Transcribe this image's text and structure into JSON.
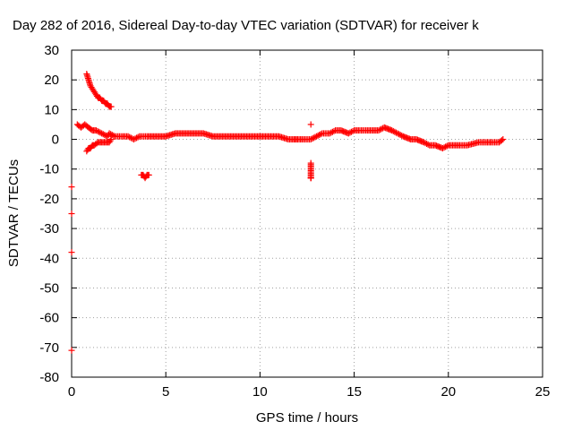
{
  "chart_data": {
    "type": "scatter",
    "title": "Day 282 of 2016, Sidereal Day-to-day VTEC variation (SDTVAR) for receiver k",
    "xlabel": "GPS time / hours",
    "ylabel": "SDTVAR / TECUs",
    "xlim": [
      0,
      25
    ],
    "ylim": [
      -80,
      30
    ],
    "xticks": [
      "0",
      "5",
      "10",
      "15",
      "20",
      "25"
    ],
    "yticks": [
      "30",
      "20",
      "10",
      "0",
      "-10",
      "-20",
      "-30",
      "-40",
      "-50",
      "-60",
      "-70",
      "-80"
    ],
    "grid": true,
    "marker": "+",
    "color": "#ff0000",
    "series": [
      {
        "x": [
          0.0,
          0.0,
          0.0,
          0.0,
          0.3,
          0.5,
          0.7,
          0.9,
          1.1,
          1.3,
          1.6,
          1.9,
          2.0,
          2.3,
          2.7,
          3.0,
          3.3,
          3.6,
          4.0,
          4.5,
          5.0,
          5.5,
          6.0,
          6.5,
          7.0,
          7.5,
          8.0,
          8.5,
          9.0,
          9.5,
          10.0,
          10.5,
          11.0,
          11.5,
          11.8,
          12.0,
          12.3,
          12.7,
          13.0,
          13.3,
          13.7,
          14.0,
          14.3,
          14.7,
          15.0,
          15.3,
          15.7,
          16.3,
          16.6,
          17.0,
          17.3,
          17.6,
          18.0,
          18.3,
          18.7,
          19.0,
          19.3,
          19.7,
          20.0,
          20.3,
          20.6,
          21.0,
          21.6,
          22.0,
          22.3,
          22.7,
          22.9
        ],
        "y": [
          -16,
          -25,
          -38,
          -71,
          5,
          4,
          5,
          4,
          3,
          3,
          2,
          1,
          2,
          1,
          1,
          1,
          0,
          1,
          1,
          1,
          1,
          2,
          2,
          2,
          2,
          1,
          1,
          1,
          1,
          1,
          1,
          1,
          1,
          0,
          0,
          0,
          0,
          0,
          1,
          2,
          2,
          3,
          3,
          2,
          3,
          3,
          3,
          3,
          4,
          3,
          2,
          1,
          0,
          0,
          -1,
          -2,
          -2,
          -3,
          -2,
          -2,
          -2,
          -2,
          -1,
          -1,
          -1,
          -1,
          0
        ]
      },
      {
        "x": [
          0.8,
          0.9,
          1.0,
          1.1,
          1.2,
          1.3,
          1.4,
          1.5,
          1.6,
          1.7,
          1.8,
          1.9,
          2.0,
          2.1
        ],
        "y": [
          22,
          20,
          18,
          17,
          16,
          15,
          14,
          14,
          13,
          13,
          12,
          12,
          11,
          11
        ]
      },
      {
        "x": [
          0.8,
          0.9,
          1.0,
          1.1,
          1.2,
          1.4,
          1.6,
          1.8,
          2.0,
          2.1
        ],
        "y": [
          -4,
          -3,
          -3,
          -2,
          -2,
          -1,
          -1,
          -1,
          -1,
          0
        ]
      },
      {
        "x": [
          3.7,
          3.8,
          3.9,
          4.0,
          4.1
        ],
        "y": [
          -12,
          -12,
          -13,
          -12,
          -12
        ]
      },
      {
        "x": [
          12.7,
          12.7,
          12.7,
          12.7,
          12.7,
          12.7
        ],
        "y": [
          5,
          -8,
          -10,
          -11,
          -13,
          -13
        ]
      }
    ]
  }
}
